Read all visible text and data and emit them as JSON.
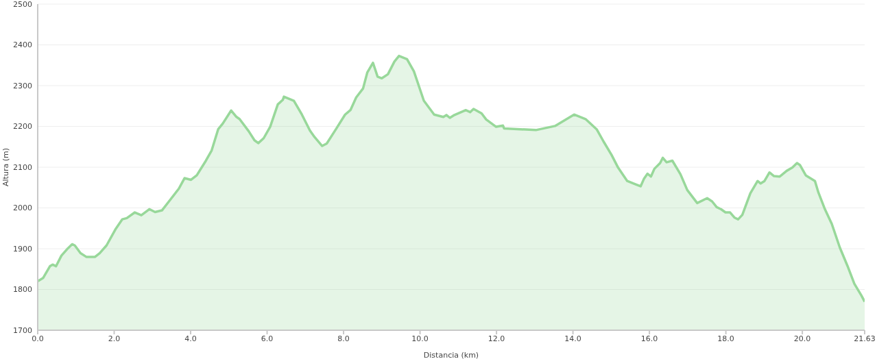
{
  "chart_data": {
    "type": "area",
    "xlabel": "Distancia   (km)",
    "ylabel": "Altura (m)",
    "x": [
      0,
      0.14,
      0.32,
      0.39,
      0.48,
      0.62,
      0.79,
      0.9,
      0.97,
      1.12,
      1.27,
      1.5,
      1.62,
      1.8,
      2.03,
      2.21,
      2.33,
      2.54,
      2.71,
      2.92,
      3.07,
      3.25,
      3.45,
      3.69,
      3.84,
      4.01,
      4.16,
      4.4,
      4.55,
      4.72,
      4.84,
      5.06,
      5.19,
      5.28,
      5.52,
      5.67,
      5.77,
      5.91,
      6.08,
      6.28,
      6.41,
      6.44,
      6.7,
      6.91,
      7.12,
      7.24,
      7.44,
      7.56,
      7.8,
      8.04,
      8.18,
      8.33,
      8.51,
      8.62,
      8.77,
      8.89,
      9,
      9.16,
      9.33,
      9.45,
      9.66,
      9.84,
      10.1,
      10.37,
      10.61,
      10.69,
      10.78,
      10.9,
      11.2,
      11.31,
      11.4,
      11.61,
      11.73,
      11.99,
      12.17,
      12.2,
      13.03,
      13.53,
      14.03,
      14.33,
      14.62,
      14.8,
      15.01,
      15.18,
      15.42,
      15.63,
      15.77,
      15.86,
      15.95,
      16.04,
      16.13,
      16.28,
      16.35,
      16.45,
      16.6,
      16.81,
      16.99,
      17.25,
      17.51,
      17.64,
      17.76,
      17.87,
      17.99,
      18.11,
      18.23,
      18.32,
      18.43,
      18.64,
      18.83,
      18.91,
      19.01,
      19.14,
      19.26,
      19.41,
      19.59,
      19.74,
      19.86,
      19.94,
      20.09,
      20.33,
      20.42,
      20.59,
      20.77,
      20.98,
      21.18,
      21.36,
      21.54,
      21.63
    ],
    "series": [
      {
        "color": "#98d89a",
        "values": [
          1820,
          1828,
          1857,
          1861,
          1857,
          1883,
          1901,
          1911,
          1908,
          1889,
          1880,
          1880,
          1889,
          1908,
          1947,
          1972,
          1975,
          1989,
          1982,
          1997,
          1990,
          1994,
          2018,
          2047,
          2073,
          2069,
          2080,
          2116,
          2141,
          2193,
          2207,
          2239,
          2224,
          2218,
          2188,
          2166,
          2159,
          2171,
          2199,
          2254,
          2265,
          2273,
          2263,
          2229,
          2190,
          2174,
          2152,
          2158,
          2193,
          2229,
          2240,
          2271,
          2293,
          2332,
          2356,
          2322,
          2318,
          2328,
          2359,
          2373,
          2365,
          2335,
          2263,
          2229,
          2223,
          2228,
          2221,
          2228,
          2240,
          2235,
          2243,
          2232,
          2217,
          2199,
          2202,
          2195,
          2191,
          2201,
          2229,
          2218,
          2193,
          2163,
          2130,
          2099,
          2066,
          2058,
          2053,
          2072,
          2084,
          2077,
          2096,
          2110,
          2123,
          2112,
          2116,
          2083,
          2044,
          2012,
          2024,
          2016,
          2002,
          1997,
          1989,
          1989,
          1976,
          1972,
          1983,
          2036,
          2066,
          2060,
          2066,
          2087,
          2078,
          2077,
          2091,
          2099,
          2110,
          2105,
          2080,
          2066,
          2038,
          1997,
          1961,
          1903,
          1858,
          1814,
          1786,
          1770
        ]
      }
    ],
    "xlim": [
      0,
      21.63
    ],
    "xticks": [
      {
        "value": 0,
        "label": "0.0"
      },
      {
        "value": 2,
        "label": "2.0"
      },
      {
        "value": 4,
        "label": "4.0"
      },
      {
        "value": 6,
        "label": "6.0"
      },
      {
        "value": 8,
        "label": "8.0"
      },
      {
        "value": 10,
        "label": "10.0"
      },
      {
        "value": 12,
        "label": "12.0"
      },
      {
        "value": 14,
        "label": "14.0"
      },
      {
        "value": 16,
        "label": "16.0"
      },
      {
        "value": 18,
        "label": "18.0"
      },
      {
        "value": 20,
        "label": "20.0"
      },
      21.63
    ],
    "ylim": [
      1700,
      2500
    ],
    "yticks": [
      1700,
      1800,
      1900,
      2000,
      2100,
      2200,
      2300,
      2400,
      2500
    ],
    "grid": "y",
    "legend": false,
    "marker": "none",
    "line_style": "solid"
  }
}
